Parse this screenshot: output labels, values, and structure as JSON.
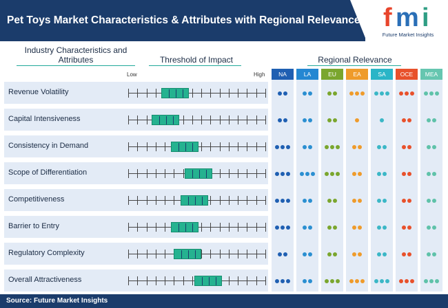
{
  "title": "Pet Toys Market Characteristics & Attributes with Regional Relevance",
  "logo": {
    "letters": "fmi",
    "name": "Future Market Insights",
    "colors": {
      "f": "#e8452c",
      "m": "#2a6fb7",
      "i": "#2f9e84"
    }
  },
  "headers": {
    "industry": "Industry Characteristics and Attributes",
    "threshold": "Threshold of Impact",
    "regional": "Regional Relevance",
    "low": "Low",
    "high": "High"
  },
  "source": "Source: Future Market Insights",
  "colors": {
    "header_bg": "#1b3c6b",
    "box": "#25b290",
    "row_bg": "#e3ebf6"
  },
  "chart_data": {
    "type": "table",
    "scale_ticks": 16,
    "regions": [
      {
        "code": "NA",
        "color": "#1f5fb2",
        "dot": "#1f5fb2"
      },
      {
        "code": "LA",
        "color": "#2487d2",
        "dot": "#2b8fd1"
      },
      {
        "code": "EU",
        "color": "#7aa62e",
        "dot": "#7aa62e"
      },
      {
        "code": "EA",
        "color": "#ef9b2b",
        "dot": "#ef9b2b"
      },
      {
        "code": "SA",
        "color": "#2ab5c7",
        "dot": "#3bb7c6"
      },
      {
        "code": "OCE",
        "color": "#e8512b",
        "dot": "#e8512b"
      },
      {
        "code": "MEA",
        "color": "#66c6b0",
        "dot": "#5fc2a9"
      }
    ],
    "rows": [
      {
        "label": "Revenue Volatility",
        "impact_low": 0.24,
        "impact_high": 0.44,
        "relevance": [
          2,
          2,
          2,
          3,
          3,
          3,
          3
        ]
      },
      {
        "label": "Capital Intensiveness",
        "impact_low": 0.17,
        "impact_high": 0.37,
        "relevance": [
          2,
          2,
          2,
          1,
          1,
          2,
          2
        ]
      },
      {
        "label": "Consistency in Demand",
        "impact_low": 0.31,
        "impact_high": 0.51,
        "relevance": [
          3,
          2,
          3,
          2,
          2,
          2,
          2
        ]
      },
      {
        "label": "Scope of Differentiation",
        "impact_low": 0.41,
        "impact_high": 0.61,
        "relevance": [
          3,
          3,
          3,
          2,
          2,
          2,
          2
        ]
      },
      {
        "label": "Competitiveness",
        "impact_low": 0.38,
        "impact_high": 0.58,
        "relevance": [
          3,
          2,
          2,
          2,
          2,
          2,
          2
        ]
      },
      {
        "label": "Barrier to Entry",
        "impact_low": 0.31,
        "impact_high": 0.51,
        "relevance": [
          3,
          2,
          2,
          2,
          2,
          2,
          2
        ]
      },
      {
        "label": "Regulatory Complexity",
        "impact_low": 0.33,
        "impact_high": 0.53,
        "relevance": [
          2,
          2,
          2,
          2,
          2,
          2,
          2
        ]
      },
      {
        "label": "Overall Attractiveness",
        "impact_low": 0.48,
        "impact_high": 0.68,
        "relevance": [
          3,
          2,
          3,
          3,
          3,
          3,
          3
        ]
      }
    ]
  }
}
